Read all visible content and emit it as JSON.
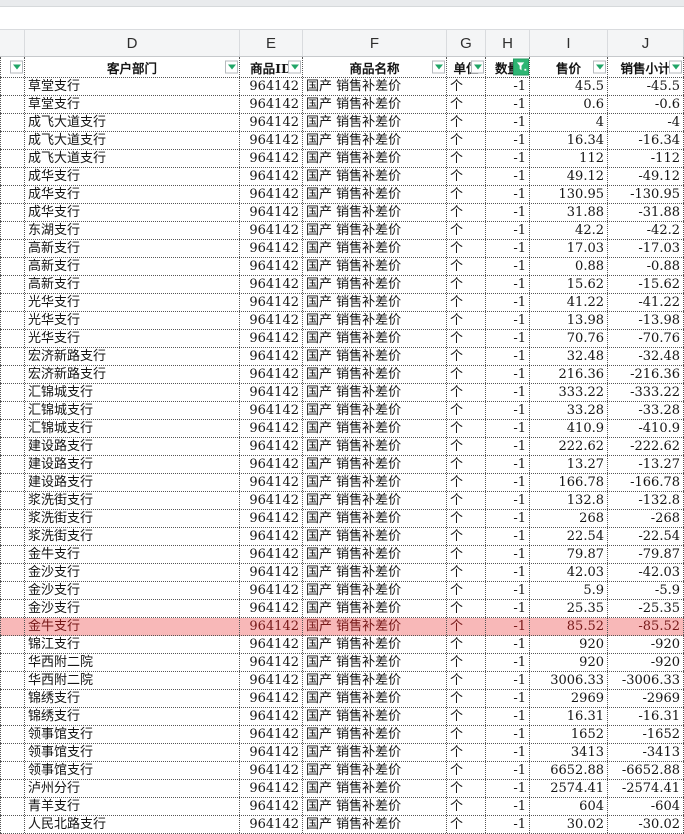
{
  "sheet": {
    "accent_green": "#21a567",
    "filter_active_bg": "#2eb573",
    "highlight_bg": "#f8b8b8",
    "highlight_text": "#751818",
    "columns": [
      {
        "key": "c",
        "letter": "",
        "header": "",
        "width_class": "w-c",
        "align": "al",
        "dropdown": true,
        "filtered": false
      },
      {
        "key": "d",
        "letter": "D",
        "header": "客户部门",
        "width_class": "w-d",
        "align": "al",
        "dropdown": true,
        "filtered": false
      },
      {
        "key": "e",
        "letter": "E",
        "header": "商品ID",
        "width_class": "w-e",
        "align": "ar",
        "dropdown": true,
        "filtered": false
      },
      {
        "key": "f",
        "letter": "F",
        "header": "商品名称",
        "width_class": "w-f",
        "align": "al",
        "dropdown": true,
        "filtered": false
      },
      {
        "key": "g",
        "letter": "G",
        "header": "单位",
        "width_class": "w-g",
        "align": "al",
        "dropdown": true,
        "filtered": false
      },
      {
        "key": "h",
        "letter": "H",
        "header": "数量",
        "width_class": "w-h",
        "align": "ar",
        "dropdown": true,
        "filtered": true
      },
      {
        "key": "i",
        "letter": "I",
        "header": "售价",
        "width_class": "w-i",
        "align": "ar",
        "dropdown": true,
        "filtered": false
      },
      {
        "key": "j",
        "letter": "J",
        "header": "销售小计",
        "width_class": "w-j",
        "align": "ar",
        "dropdown": true,
        "filtered": false
      }
    ],
    "row_constants": {
      "product_id": "964142",
      "product_name": "国产  销售补差价",
      "unit": "个",
      "quantity": "-1"
    },
    "highlighted_row_index": 30,
    "rows": [
      {
        "branch": "草堂支行",
        "price": "45.5",
        "subtotal": "-45.5"
      },
      {
        "branch": "草堂支行",
        "price": "0.6",
        "subtotal": "-0.6"
      },
      {
        "branch": "成飞大道支行",
        "price": "4",
        "subtotal": "-4"
      },
      {
        "branch": "成飞大道支行",
        "price": "16.34",
        "subtotal": "-16.34"
      },
      {
        "branch": "成飞大道支行",
        "price": "112",
        "subtotal": "-112"
      },
      {
        "branch": "成华支行",
        "price": "49.12",
        "subtotal": "-49.12"
      },
      {
        "branch": "成华支行",
        "price": "130.95",
        "subtotal": "-130.95"
      },
      {
        "branch": "成华支行",
        "price": "31.88",
        "subtotal": "-31.88"
      },
      {
        "branch": "东湖支行",
        "price": "42.2",
        "subtotal": "-42.2"
      },
      {
        "branch": "高新支行",
        "price": "17.03",
        "subtotal": "-17.03"
      },
      {
        "branch": "高新支行",
        "price": "0.88",
        "subtotal": "-0.88"
      },
      {
        "branch": "高新支行",
        "price": "15.62",
        "subtotal": "-15.62"
      },
      {
        "branch": "光华支行",
        "price": "41.22",
        "subtotal": "-41.22"
      },
      {
        "branch": "光华支行",
        "price": "13.98",
        "subtotal": "-13.98"
      },
      {
        "branch": "光华支行",
        "price": "70.76",
        "subtotal": "-70.76"
      },
      {
        "branch": "宏济新路支行",
        "price": "32.48",
        "subtotal": "-32.48"
      },
      {
        "branch": "宏济新路支行",
        "price": "216.36",
        "subtotal": "-216.36"
      },
      {
        "branch": "汇锦城支行",
        "price": "333.22",
        "subtotal": "-333.22"
      },
      {
        "branch": "汇锦城支行",
        "price": "33.28",
        "subtotal": "-33.28"
      },
      {
        "branch": "汇锦城支行",
        "price": "410.9",
        "subtotal": "-410.9"
      },
      {
        "branch": "建设路支行",
        "price": "222.62",
        "subtotal": "-222.62"
      },
      {
        "branch": "建设路支行",
        "price": "13.27",
        "subtotal": "-13.27"
      },
      {
        "branch": "建设路支行",
        "price": "166.78",
        "subtotal": "-166.78"
      },
      {
        "branch": "浆洗街支行",
        "price": "132.8",
        "subtotal": "-132.8"
      },
      {
        "branch": "浆洗街支行",
        "price": "268",
        "subtotal": "-268"
      },
      {
        "branch": "浆洗街支行",
        "price": "22.54",
        "subtotal": "-22.54"
      },
      {
        "branch": "金牛支行",
        "price": "79.87",
        "subtotal": "-79.87"
      },
      {
        "branch": "金沙支行",
        "price": "42.03",
        "subtotal": "-42.03"
      },
      {
        "branch": "金沙支行",
        "price": "5.9",
        "subtotal": "-5.9"
      },
      {
        "branch": "金沙支行",
        "price": "25.35",
        "subtotal": "-25.35"
      },
      {
        "branch": "金牛支行",
        "price": "85.52",
        "subtotal": "-85.52"
      },
      {
        "branch": "锦江支行",
        "price": "920",
        "subtotal": "-920"
      },
      {
        "branch": "华西附二院",
        "price": "920",
        "subtotal": "-920"
      },
      {
        "branch": "华西附二院",
        "price": "3006.33",
        "subtotal": "-3006.33"
      },
      {
        "branch": "锦绣支行",
        "price": "2969",
        "subtotal": "-2969"
      },
      {
        "branch": "锦绣支行",
        "price": "16.31",
        "subtotal": "-16.31"
      },
      {
        "branch": "领事馆支行",
        "price": "1652",
        "subtotal": "-1652"
      },
      {
        "branch": "领事馆支行",
        "price": "3413",
        "subtotal": "-3413"
      },
      {
        "branch": "领事馆支行",
        "price": "6652.88",
        "subtotal": "-6652.88"
      },
      {
        "branch": "泸州分行",
        "price": "2574.41",
        "subtotal": "-2574.41"
      },
      {
        "branch": "青羊支行",
        "price": "604",
        "subtotal": "-604"
      },
      {
        "branch": "人民北路支行",
        "price": "30.02",
        "subtotal": "-30.02"
      }
    ]
  }
}
